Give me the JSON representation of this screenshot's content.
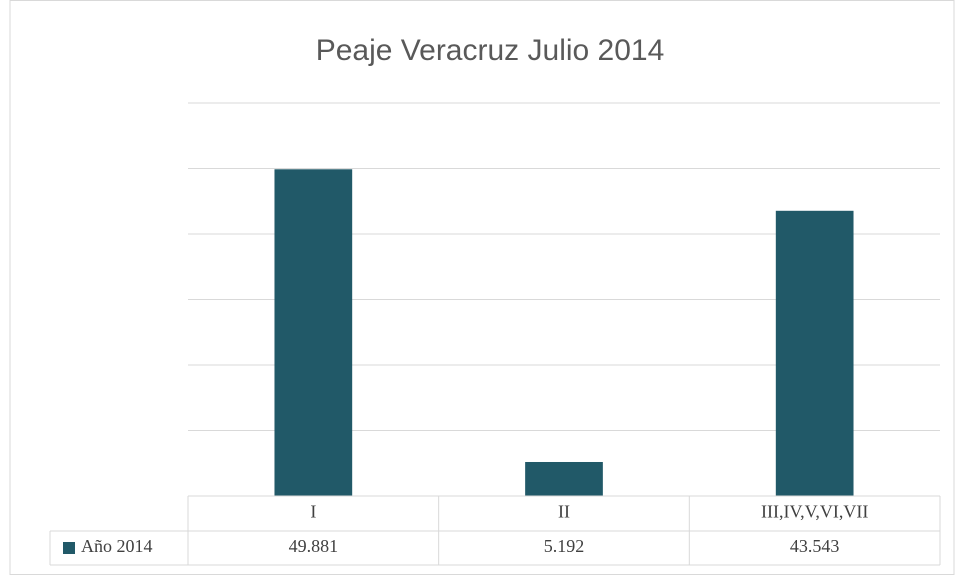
{
  "chart_data": {
    "type": "bar",
    "title": "Peaje Veracruz Julio 2014",
    "categories": [
      "I",
      "II",
      "III,IV,V,VI,VII"
    ],
    "series": [
      {
        "name": "Año 2014",
        "color": "#215968",
        "values": [
          49.881,
          5.192,
          43.543
        ]
      }
    ],
    "ylim": [
      0,
      60
    ],
    "yticks": [
      0,
      10,
      20,
      30,
      40,
      50,
      60
    ],
    "grid": true,
    "data_table": true
  }
}
